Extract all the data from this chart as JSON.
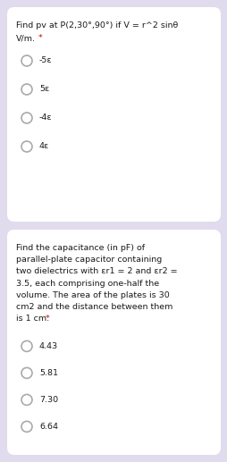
{
  "bg_color": "#e0dced",
  "card_color": "#ffffff",
  "q1_title_line1": "Find pv at P(2,30°,90°) if V = r^2 sinθ",
  "q1_title_line2": "V/m.",
  "q1_asterisk": " *",
  "q1_options": [
    "-5ε",
    "5ε",
    "-4ε",
    "4ε"
  ],
  "q2_title_lines": [
    "Find the capacitance (in pF) of",
    "parallel-plate capacitor containing",
    "two dielectrics with εr1 = 2 and εr2 =",
    "3.5, each comprising one-half the",
    "volume. The area of the plates is 30",
    "cm2 and the distance between them",
    "is 1 cm."
  ],
  "q2_asterisk": " *",
  "q2_options": [
    "4.43",
    "5.81",
    "7.30",
    "6.64"
  ],
  "radio_color": "#aaaaaa",
  "text_color": "#1a1a1a",
  "asterisk_color": "#cc0000",
  "title_fontsize": 6.8,
  "option_fontsize": 6.8
}
